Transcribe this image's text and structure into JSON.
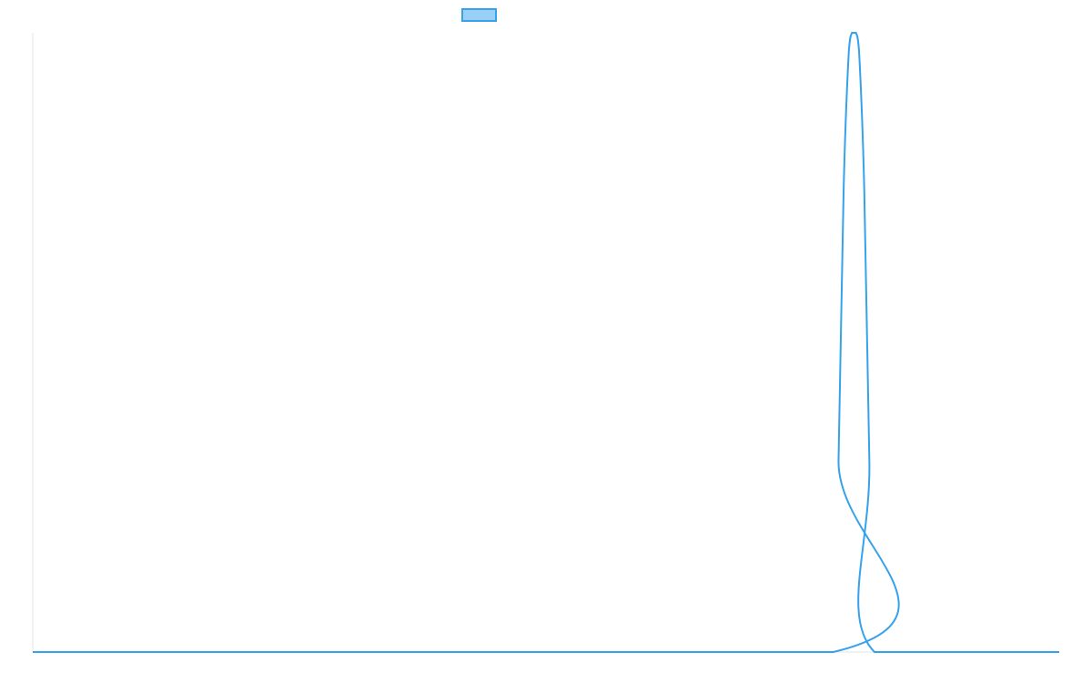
{
  "chart_data": {
    "type": "line",
    "title": "",
    "xlabel": "",
    "ylabel": "",
    "x_range": [
      0,
      100
    ],
    "ylim": [
      0,
      1
    ],
    "grid": false,
    "legend_position": "top",
    "series": [
      {
        "name": "",
        "x": [
          0,
          78.0,
          78.5,
          79.0,
          79.5,
          79.8,
          80.0,
          80.2,
          80.5,
          81.0,
          81.5,
          82.0,
          100
        ],
        "values": [
          0,
          0,
          0.31,
          0.75,
          0.97,
          1.0,
          1.0,
          1.0,
          0.97,
          0.75,
          0.31,
          0,
          0
        ],
        "color": "#36a2eb",
        "fill_color": "#9ad0f5"
      }
    ]
  }
}
